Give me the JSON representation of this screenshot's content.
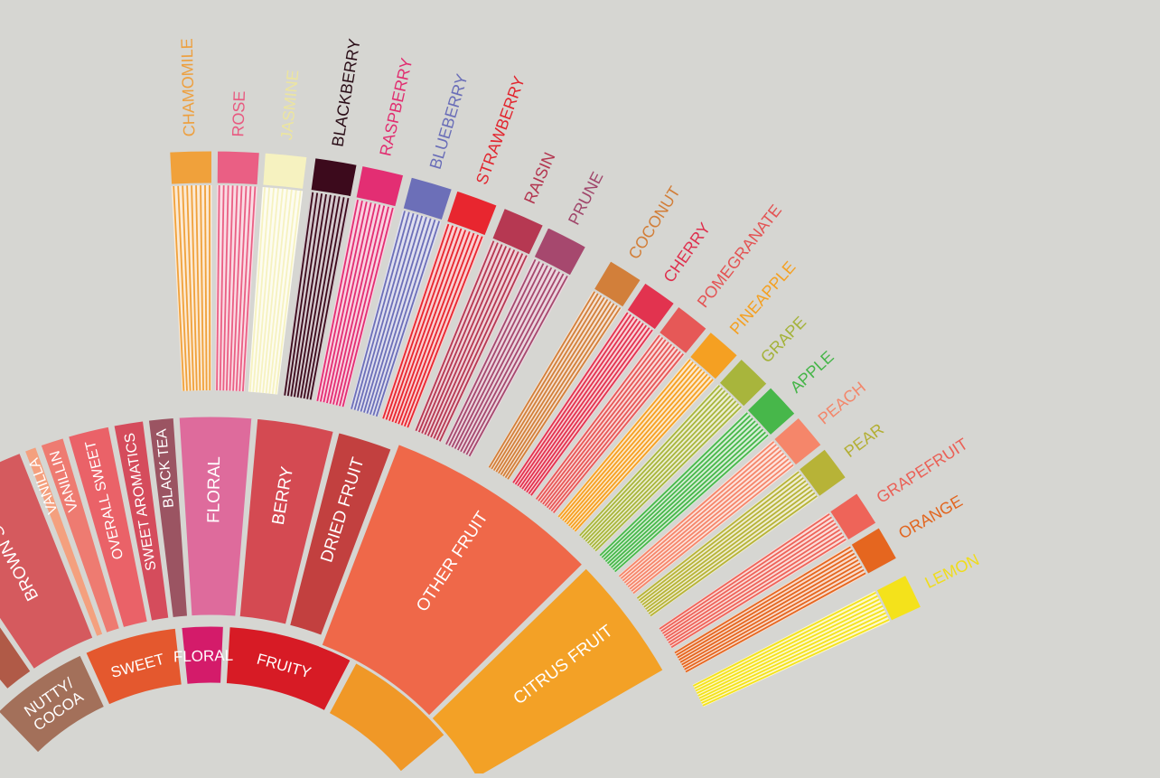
{
  "wheel": {
    "inner": [
      {
        "key": "nutty_cocoa",
        "label": "NUTTY/\nCOCOA",
        "color": "#a3705a"
      },
      {
        "key": "sweet",
        "label": "SWEET",
        "color": "#e4582e"
      },
      {
        "key": "floral",
        "label": "FLORAL",
        "color": "#d41b6a"
      },
      {
        "key": "fruity",
        "label": "FRUITY",
        "color": "#d71b25"
      },
      {
        "key": "sour",
        "label": "",
        "color": "#f09827"
      }
    ],
    "middle": [
      {
        "key": "brown_sugar",
        "label": "BROWN SUGAR",
        "color": "#d55a5e"
      },
      {
        "key": "vanilla",
        "label": "VANILLA",
        "color": "#f4a07e"
      },
      {
        "key": "vanillin",
        "label": "VANILLIN",
        "color": "#ee7b71"
      },
      {
        "key": "overall_sweet",
        "label": "OVERALL SWEET",
        "color": "#ea6268"
      },
      {
        "key": "sweet_aromatics",
        "label": "SWEET AROMATICS",
        "color": "#d54c5c"
      },
      {
        "key": "black_tea",
        "label": "BLACK TEA",
        "color": "#9b5462"
      },
      {
        "key": "floral",
        "label": "FLORAL",
        "color": "#de6b9c"
      },
      {
        "key": "berry",
        "label": "BERRY",
        "color": "#d44a52"
      },
      {
        "key": "dried_fruit",
        "label": "DRIED FRUIT",
        "color": "#c2403f"
      },
      {
        "key": "other_fruit",
        "label": "OTHER FRUIT",
        "color": "#ef6849"
      },
      {
        "key": "citrus_fruit",
        "label": "CITRUS FRUIT",
        "color": "#f3a126"
      }
    ],
    "outer": [
      {
        "key": "chamomile",
        "label": "CHAMOMILE",
        "color": "#f0a13b",
        "text": "#eda040"
      },
      {
        "key": "rose",
        "label": "ROSE",
        "color": "#ea5f84",
        "text": "#e85b81"
      },
      {
        "key": "jasmine",
        "label": "JASMINE",
        "color": "#f6f2c0",
        "text": "#ece5a0"
      },
      {
        "key": "blackberry",
        "label": "BLACKBERRY",
        "color": "#3c0a1c",
        "text": "#2a0d17"
      },
      {
        "key": "raspberry",
        "label": "RASPBERRY",
        "color": "#e32e73",
        "text": "#e12e70"
      },
      {
        "key": "blueberry",
        "label": "BLUEBERRY",
        "color": "#6c6fb8",
        "text": "#6a6eb8"
      },
      {
        "key": "strawberry",
        "label": "STRAWBERRY",
        "color": "#e8262f",
        "text": "#e2262f"
      },
      {
        "key": "raisin",
        "label": "RAISIN",
        "color": "#b63852",
        "text": "#b3354f"
      },
      {
        "key": "prune",
        "label": "PRUNE",
        "color": "#a6486e",
        "text": "#a0456a"
      },
      {
        "key": "coconut",
        "label": "COCONUT",
        "color": "#d27f3a",
        "text": "#d27e38"
      },
      {
        "key": "cherry",
        "label": "CHERRY",
        "color": "#e2334f",
        "text": "#df2f4d"
      },
      {
        "key": "pomegranate",
        "label": "POMEGRANATE",
        "color": "#e65857",
        "text": "#e35454"
      },
      {
        "key": "pineapple",
        "label": "PINEAPPLE",
        "color": "#f5a022",
        "text": "#f4a021"
      },
      {
        "key": "grape",
        "label": "GRAPE",
        "color": "#a8b53c",
        "text": "#a4b23a"
      },
      {
        "key": "apple",
        "label": "APPLE",
        "color": "#47b74a",
        "text": "#45b548"
      },
      {
        "key": "peach",
        "label": "PEACH",
        "color": "#f5866a",
        "text": "#f3866a"
      },
      {
        "key": "pear",
        "label": "PEAR",
        "color": "#b7b337",
        "text": "#b3af34"
      },
      {
        "key": "grapefruit",
        "label": "GRAPEFRUIT",
        "color": "#ee6459",
        "text": "#ea6157"
      },
      {
        "key": "orange",
        "label": "ORANGE",
        "color": "#e5661f",
        "text": "#e2651f"
      },
      {
        "key": "lemon",
        "label": "LEMON",
        "color": "#f4e21b",
        "text": "#efdc1d"
      }
    ]
  }
}
